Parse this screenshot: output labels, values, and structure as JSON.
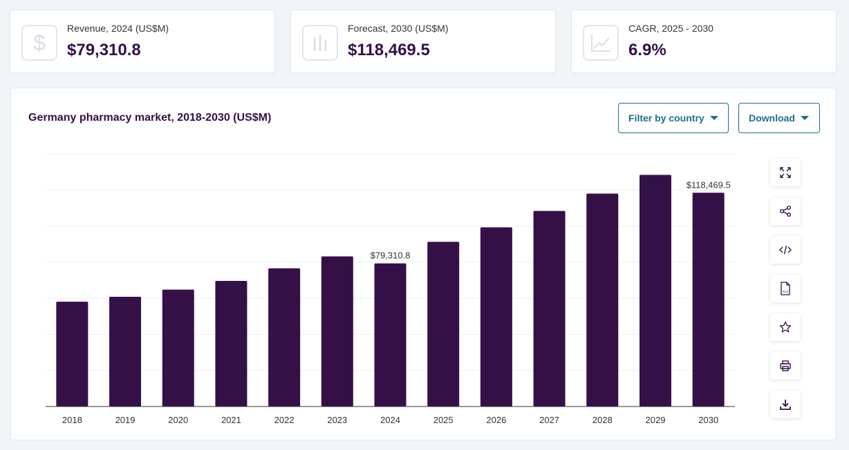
{
  "cards": [
    {
      "label": "Revenue, 2024 (US$M)",
      "value": "$79,310.8",
      "icon": "dollar-icon"
    },
    {
      "label": "Forecast, 2030 (US$M)",
      "value": "$118,469.5",
      "icon": "bar-chart-icon"
    },
    {
      "label": "CAGR, 2025 - 2030",
      "value": "6.9%",
      "icon": "line-chart-icon"
    }
  ],
  "panel": {
    "title": "Germany pharmacy market, 2018-2030 (US$M)",
    "filter_label": "Filter by country",
    "download_label": "Download"
  },
  "side_tools": [
    "expand-icon",
    "share-icon",
    "embed-code-icon",
    "xls-file-icon",
    "star-icon",
    "print-icon",
    "download-icon"
  ],
  "colors": {
    "bar": "#351047",
    "accent": "#1a6f8a"
  },
  "chart_data": {
    "type": "bar",
    "categories": [
      "2018",
      "2019",
      "2020",
      "2021",
      "2022",
      "2023",
      "2024",
      "2025",
      "2026",
      "2027",
      "2028",
      "2029",
      "2030"
    ],
    "values": [
      58100,
      60800,
      64800,
      69600,
      76600,
      83200,
      79310.8,
      91300,
      99300,
      108400,
      118000,
      128400,
      118469.5
    ],
    "ylim": [
      0,
      140000
    ],
    "grid": true,
    "data_labels": [
      {
        "category": "2024",
        "text": "$79,310.8"
      },
      {
        "category": "2030",
        "text": "$118,469.5"
      }
    ]
  }
}
